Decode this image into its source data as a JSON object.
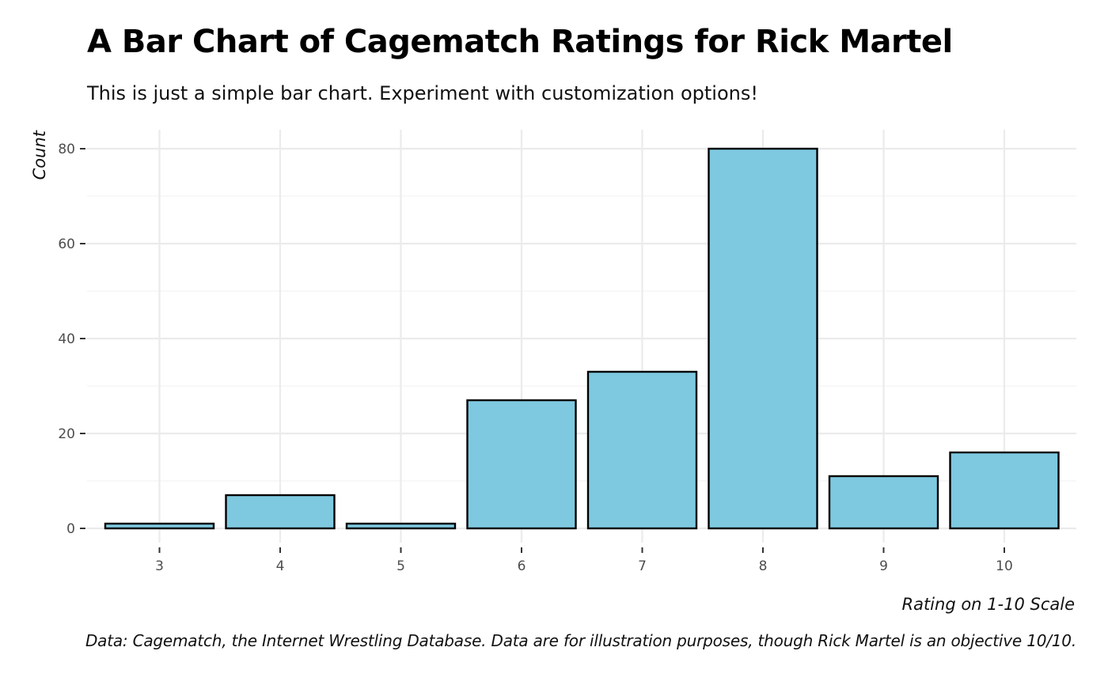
{
  "chart_data": {
    "type": "bar",
    "title": "A Bar Chart of Cagematch Ratings for Rick Martel",
    "subtitle": "This is just a simple bar chart. Experiment with customization options!",
    "caption": "Data: Cagematch, the Internet Wrestling Database. Data are for illustration purposes, though Rick Martel is an objective 10/10.",
    "xlabel": "Rating on 1-10 Scale",
    "ylabel": "Count",
    "categories": [
      "3",
      "4",
      "5",
      "6",
      "7",
      "8",
      "9",
      "10"
    ],
    "values": [
      1,
      7,
      1,
      27,
      33,
      80,
      11,
      16
    ],
    "ylim": [
      0,
      84
    ],
    "yticks": [
      "0",
      "20",
      "40",
      "60",
      "80"
    ],
    "grid": true,
    "bar_fill": "#7ec9e0",
    "bar_stroke": "#000000",
    "grid_major_color": "#ebebeb",
    "grid_minor_color": "#f3f3f3"
  }
}
